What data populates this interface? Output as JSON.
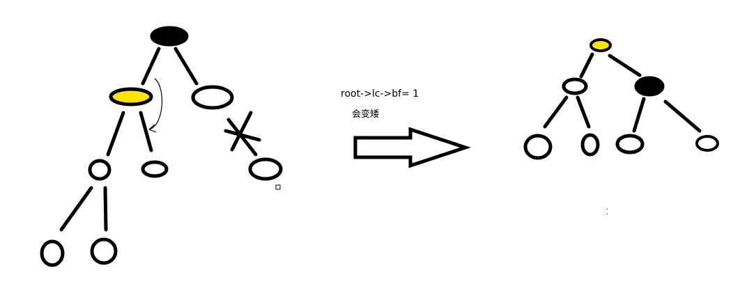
{
  "annotation": {
    "formula": "root->lc->bf= 1",
    "caption": "会变矮"
  },
  "colors": {
    "stroke": "#000000",
    "background": "#ffffff",
    "highlight": "#ffe400",
    "root_fill": "#000000"
  }
}
